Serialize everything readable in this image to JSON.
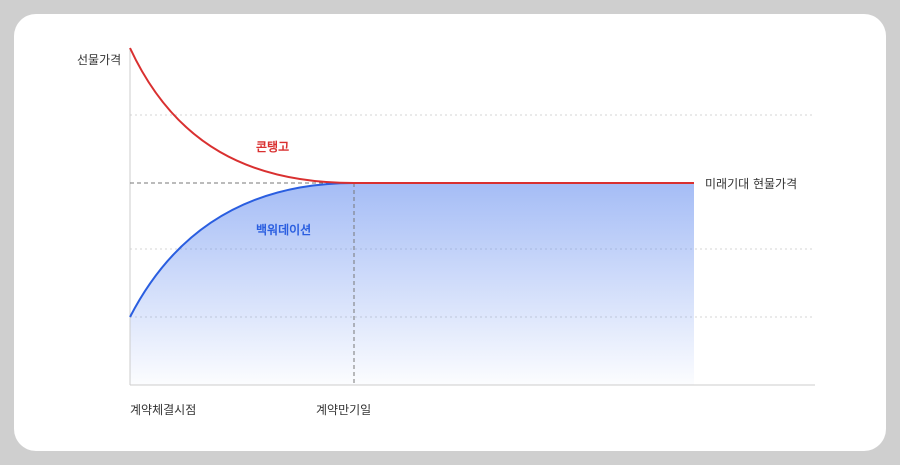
{
  "diagram": {
    "y_axis_label": "선물가격",
    "expected_spot_label": "미래기대 현물가격",
    "contango_label": "콘탱고",
    "backwardation_label": "백워데이션",
    "x_start_label": "계약체결시점",
    "x_end_label": "계약만기일",
    "colors": {
      "contango": "#d93030",
      "backwardation": "#2a5ee0",
      "fill": "#5b86ee",
      "guide": "#777777",
      "grid": "#d6d6d6"
    }
  }
}
